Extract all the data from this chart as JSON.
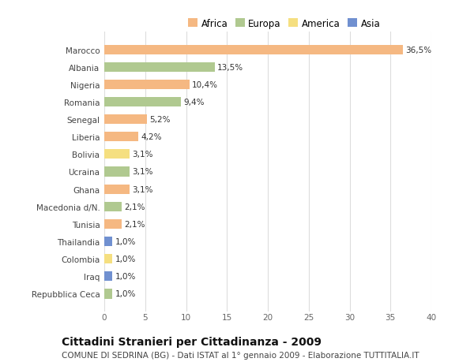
{
  "title": "Cittadini Stranieri per Cittadinanza - 2009",
  "subtitle": "COMUNE DI SEDRINA (BG) - Dati ISTAT al 1° gennaio 2009 - Elaborazione TUTTITALIA.IT",
  "legend_labels": [
    "Africa",
    "Europa",
    "America",
    "Asia"
  ],
  "legend_colors": [
    "#f5b882",
    "#b0c990",
    "#f5df80",
    "#7090d0"
  ],
  "categories": [
    "Marocco",
    "Albania",
    "Nigeria",
    "Romania",
    "Senegal",
    "Liberia",
    "Bolivia",
    "Ucraina",
    "Ghana",
    "Macedonia d/N.",
    "Tunisia",
    "Thailandia",
    "Colombia",
    "Iraq",
    "Repubblica Ceca"
  ],
  "values": [
    36.5,
    13.5,
    10.4,
    9.4,
    5.2,
    4.2,
    3.1,
    3.1,
    3.1,
    2.1,
    2.1,
    1.0,
    1.0,
    1.0,
    1.0
  ],
  "labels": [
    "36,5%",
    "13,5%",
    "10,4%",
    "9,4%",
    "5,2%",
    "4,2%",
    "3,1%",
    "3,1%",
    "3,1%",
    "2,1%",
    "2,1%",
    "1,0%",
    "1,0%",
    "1,0%",
    "1,0%"
  ],
  "colors": [
    "#f5b882",
    "#b0c990",
    "#f5b882",
    "#b0c990",
    "#f5b882",
    "#f5b882",
    "#f5df80",
    "#b0c990",
    "#f5b882",
    "#b0c990",
    "#f5b882",
    "#7090d0",
    "#f5df80",
    "#7090d0",
    "#b0c990"
  ],
  "xlim": [
    0,
    40
  ],
  "xticks": [
    0,
    5,
    10,
    15,
    20,
    25,
    30,
    35,
    40
  ],
  "background_color": "#ffffff",
  "grid_color": "#dddddd",
  "bar_height": 0.55,
  "title_fontsize": 10,
  "subtitle_fontsize": 7.5,
  "label_fontsize": 7.5,
  "tick_fontsize": 7.5,
  "legend_fontsize": 8.5
}
